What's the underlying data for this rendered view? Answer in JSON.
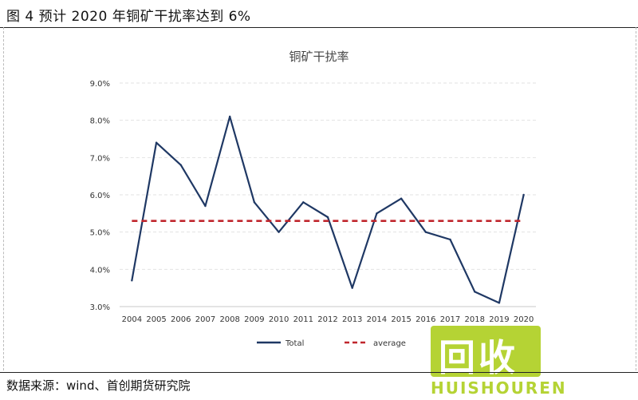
{
  "figure": {
    "title": "图 4 预计 2020 年铜矿干扰率达到 6%",
    "source": "数据来源：wind、首创期货研究院"
  },
  "watermark": {
    "text": "回收",
    "sub": "HUISHOUREN",
    "color": "#b5d334"
  },
  "chart_data": {
    "type": "line",
    "title": "铜矿干扰率",
    "xlabel": "",
    "ylabel": "",
    "x": [
      "2004",
      "2005",
      "2006",
      "2007",
      "2008",
      "2009",
      "2010",
      "2011",
      "2012",
      "2013",
      "2014",
      "2015",
      "2016",
      "2017",
      "2018",
      "2019",
      "2020"
    ],
    "ylim": [
      3.0,
      9.0
    ],
    "yticks": [
      "3.0%",
      "4.0%",
      "5.0%",
      "6.0%",
      "7.0%",
      "8.0%",
      "9.0%"
    ],
    "grid": true,
    "legend": "bottom",
    "series": [
      {
        "name": "Total",
        "style": "solid",
        "color": "#1f3864",
        "values": [
          3.7,
          7.4,
          6.8,
          5.7,
          8.1,
          5.8,
          5.0,
          5.8,
          5.4,
          3.5,
          5.5,
          5.9,
          5.0,
          4.8,
          3.4,
          3.1,
          6.0
        ]
      },
      {
        "name": "average",
        "style": "dashed",
        "color": "#c0262d",
        "values": [
          5.3,
          5.3,
          5.3,
          5.3,
          5.3,
          5.3,
          5.3,
          5.3,
          5.3,
          5.3,
          5.3,
          5.3,
          5.3,
          5.3,
          5.3,
          5.3,
          5.3
        ]
      }
    ]
  }
}
